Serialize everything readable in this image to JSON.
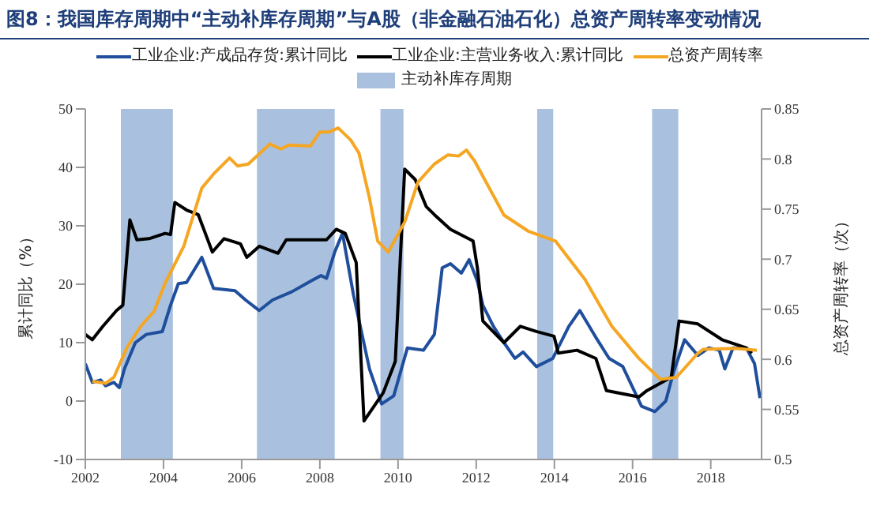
{
  "chart_data": {
    "type": "line",
    "title": "图8：我国库存周期中“主动补库存周期”与A股（非金融石油石化）总资产周转率变动情况",
    "ylabel": "累计同比（%）",
    "y2label": "总资产周转率（次）",
    "legend": "top",
    "grid": false,
    "xlim": [
      2002,
      2019.3
    ],
    "xticks": [
      2002,
      2004,
      2006,
      2008,
      2010,
      2012,
      2014,
      2016,
      2018
    ],
    "ylim": [
      -10,
      50
    ],
    "yticks": [
      -10,
      0,
      10,
      20,
      30,
      40,
      50
    ],
    "y2lim": [
      0.5,
      0.85
    ],
    "y2ticks": [
      0.5,
      0.55,
      0.6,
      0.65,
      0.7,
      0.75,
      0.8,
      0.85
    ],
    "bands": [
      {
        "axis": "x",
        "from": 2002.91,
        "to": 2004.24,
        "label": "主动补库存周期",
        "color": "#a9c1de"
      },
      {
        "axis": "x",
        "from": 2006.39,
        "to": 2008.38,
        "color": "#a9c1de"
      },
      {
        "axis": "x",
        "from": 2009.55,
        "to": 2010.14,
        "color": "#a9c1de"
      },
      {
        "axis": "x",
        "from": 2013.56,
        "to": 2013.97,
        "color": "#a9c1de"
      },
      {
        "axis": "x",
        "from": 2016.5,
        "to": 2017.17,
        "color": "#a9c1de"
      }
    ],
    "series": [
      {
        "name": "工业企业:产成品存货:累计同比",
        "color": "#1f4e9c",
        "x": [
          2002.0,
          2002.18,
          2002.39,
          2002.52,
          2002.73,
          2002.87,
          2003.0,
          2003.28,
          2003.56,
          2003.97,
          2004.18,
          2004.38,
          2004.59,
          2004.98,
          2005.28,
          2005.83,
          2006.1,
          2006.45,
          2006.79,
          2007.28,
          2007.76,
          2008.03,
          2008.17,
          2008.38,
          2008.58,
          2008.86,
          2009.27,
          2009.58,
          2009.89,
          2010.24,
          2010.65,
          2010.93,
          2011.13,
          2011.34,
          2011.62,
          2011.82,
          2012.03,
          2012.17,
          2012.44,
          2012.71,
          2012.99,
          2013.2,
          2013.54,
          2013.96,
          2014.37,
          2014.65,
          2015.06,
          2015.4,
          2015.75,
          2016.23,
          2016.57,
          2016.85,
          2017.05,
          2017.33,
          2017.67,
          2017.95,
          2018.22,
          2018.36,
          2018.57,
          2018.91,
          2019.12,
          2019.26
        ],
        "values": [
          6.4,
          3.2,
          3.6,
          2.6,
          3.2,
          2.3,
          5.5,
          10,
          11.4,
          11.9,
          16.4,
          20.1,
          20.3,
          24.6,
          19.3,
          18.9,
          17.3,
          15.5,
          17.3,
          18.7,
          20.5,
          21.5,
          21,
          25.5,
          28.7,
          18.2,
          5.5,
          -0.5,
          0.9,
          9.1,
          8.7,
          11.4,
          22.8,
          23.5,
          21.9,
          24.2,
          20.5,
          16.4,
          12.8,
          10,
          7.3,
          8.4,
          5.9,
          7.3,
          12.8,
          15.5,
          10.9,
          7.3,
          5.9,
          -0.9,
          -1.8,
          0,
          5,
          10.5,
          7.8,
          9.1,
          8.7,
          5.5,
          9.1,
          9.1,
          6.4,
          0.5
        ]
      },
      {
        "name": "工业企业:主营业务收入:累计同比",
        "color": "#000000",
        "x": [
          2002.0,
          2002.18,
          2002.45,
          2002.8,
          2002.96,
          2003.14,
          2003.32,
          2003.63,
          2004.04,
          2004.18,
          2004.29,
          2004.59,
          2004.89,
          2005.25,
          2005.55,
          2005.97,
          2006.13,
          2006.45,
          2006.93,
          2007.14,
          2007.76,
          2008.17,
          2008.42,
          2008.65,
          2008.93,
          2009.13,
          2009.62,
          2009.93,
          2010.17,
          2010.44,
          2010.72,
          2010.93,
          2011.34,
          2011.92,
          2012.03,
          2012.17,
          2012.71,
          2013.13,
          2013.54,
          2013.99,
          2014.1,
          2014.58,
          2015.06,
          2015.33,
          2016.16,
          2016.37,
          2016.99,
          2017.19,
          2017.67,
          2018.29,
          2018.91,
          2019.05
        ],
        "values": [
          11.4,
          10.5,
          12.8,
          15.5,
          16.4,
          31,
          27.6,
          27.8,
          28.7,
          28.5,
          34,
          32.7,
          31.9,
          25.5,
          27.8,
          26.9,
          24.6,
          26.5,
          25.3,
          27.6,
          27.6,
          27.6,
          29.4,
          28.7,
          23.7,
          -3.4,
          1.4,
          6.8,
          39.7,
          37.9,
          33.3,
          31.9,
          29.4,
          27.4,
          22.8,
          13.7,
          10,
          12.8,
          11.9,
          11.1,
          8.2,
          8.7,
          7.3,
          1.8,
          0.7,
          1.8,
          4.1,
          13.7,
          13.2,
          10.5,
          9.1,
          8.2
        ]
      },
      {
        "name": "总资产周转率",
        "color": "#f5a623",
        "axis": "y2",
        "x": [
          2002.18,
          2002.52,
          2002.73,
          2003.07,
          2003.42,
          2003.76,
          2004.04,
          2004.52,
          2004.98,
          2005.28,
          2005.69,
          2005.9,
          2006.17,
          2006.72,
          2007.0,
          2007.21,
          2007.76,
          2008.0,
          2008.24,
          2008.47,
          2008.79,
          2009.0,
          2009.27,
          2009.48,
          2009.75,
          2010.17,
          2010.51,
          2010.93,
          2011.27,
          2011.55,
          2011.75,
          2011.96,
          2012.71,
          2013.33,
          2014.03,
          2014.78,
          2015.47,
          2016.16,
          2016.71,
          2017.12,
          2017.67,
          2017.81,
          2018.64,
          2019.18
        ],
        "values": [
          0.578,
          0.576,
          0.582,
          0.612,
          0.633,
          0.648,
          0.676,
          0.713,
          0.771,
          0.785,
          0.801,
          0.793,
          0.795,
          0.815,
          0.81,
          0.814,
          0.813,
          0.827,
          0.827,
          0.831,
          0.819,
          0.806,
          0.761,
          0.718,
          0.707,
          0.737,
          0.777,
          0.795,
          0.804,
          0.803,
          0.809,
          0.798,
          0.744,
          0.728,
          0.718,
          0.68,
          0.633,
          0.601,
          0.58,
          0.582,
          0.606,
          0.61,
          0.611,
          0.609
        ]
      }
    ]
  }
}
